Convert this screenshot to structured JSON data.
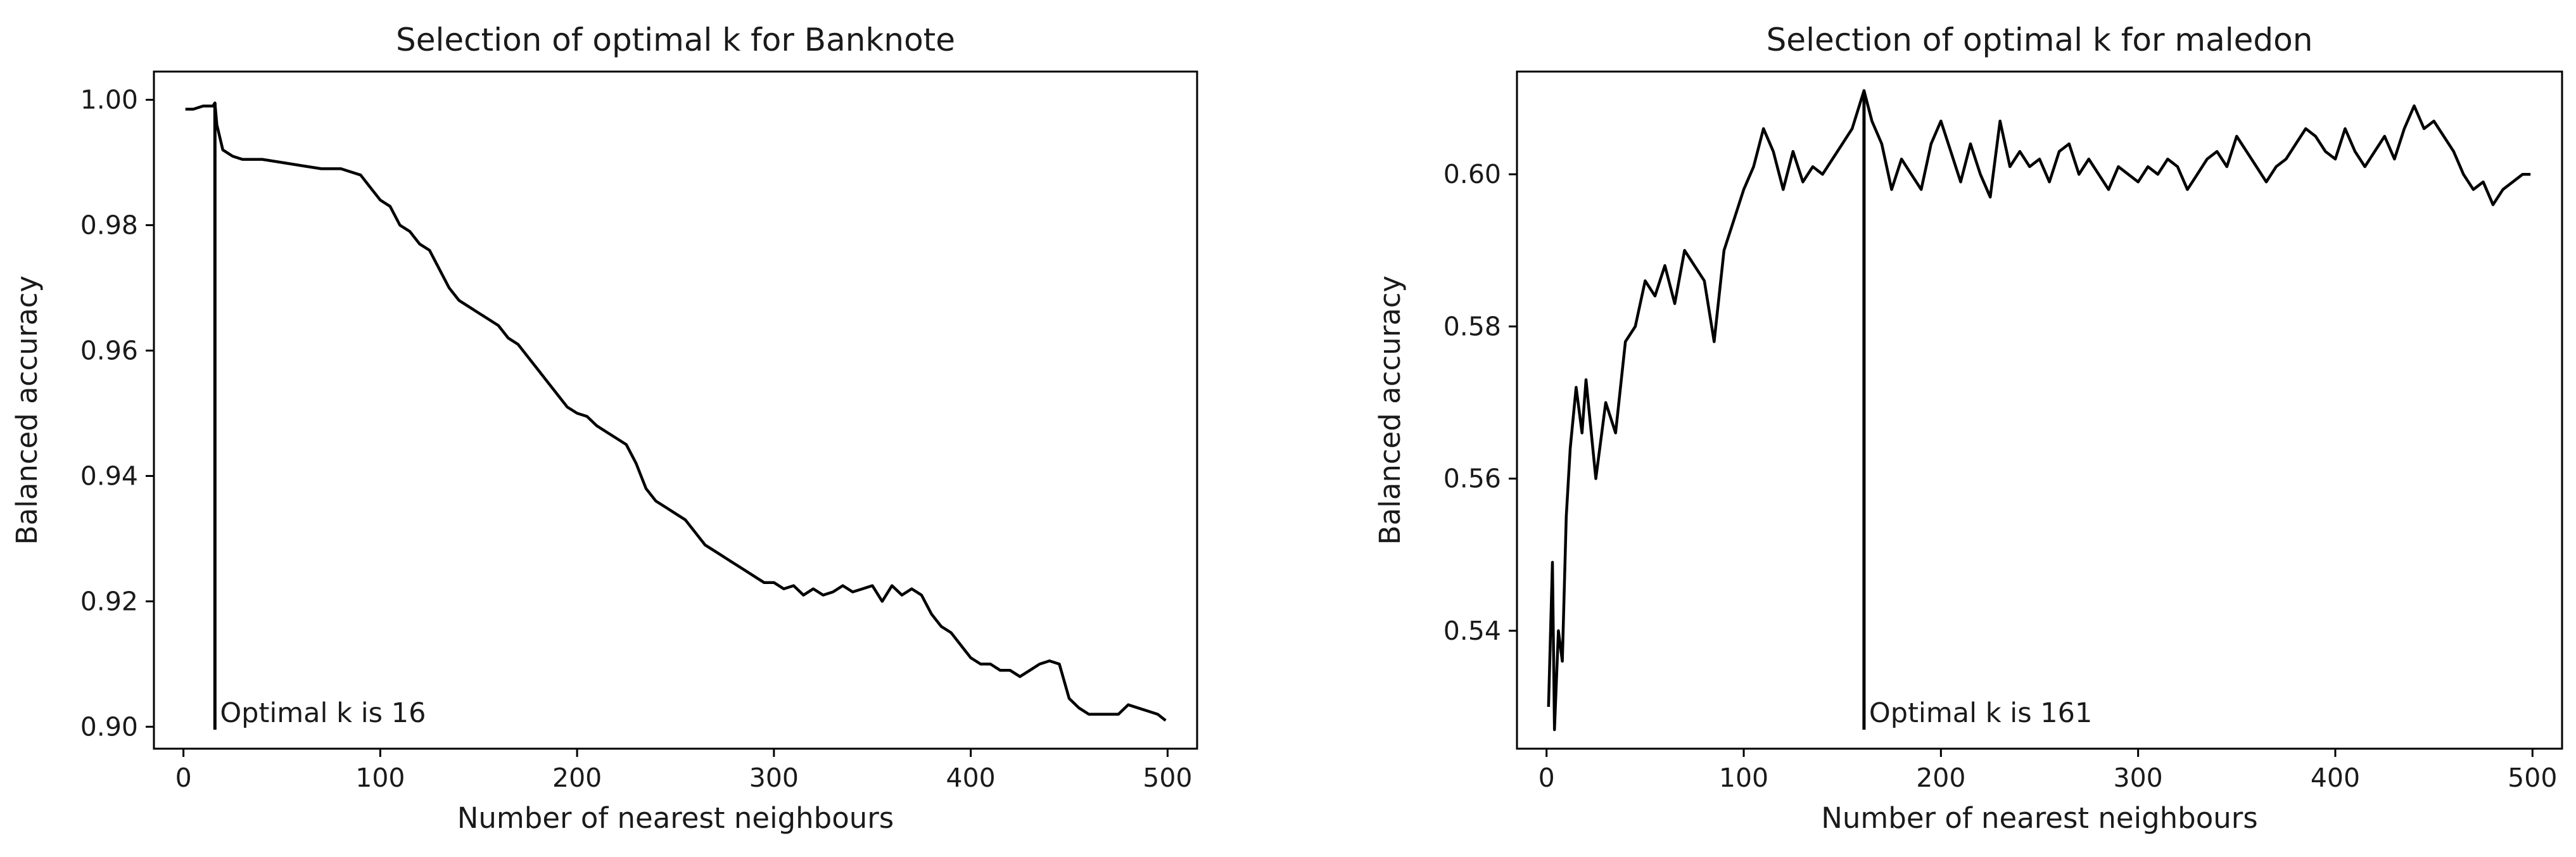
{
  "chart_data": [
    {
      "type": "line",
      "title": "Selection of optimal k for Banknote",
      "xlabel": "Number of nearest neighbours",
      "ylabel": "Balanced accuracy",
      "xlim": [
        -15,
        515
      ],
      "ylim": [
        0.8965,
        1.0045
      ],
      "xticks": [
        0,
        100,
        200,
        300,
        400,
        500
      ],
      "yticks": [
        0.9,
        0.92,
        0.94,
        0.96,
        0.98,
        1.0
      ],
      "ytick_labels": [
        "0.90",
        "0.92",
        "0.94",
        "0.96",
        "0.98",
        "1.00"
      ],
      "grid": false,
      "optimal_k": 16,
      "optimal_value": 0.9995,
      "annotation": "Optimal k is 16",
      "series": [
        {
          "x": [
            1,
            5,
            10,
            13,
            15,
            16,
            17,
            20,
            25,
            30,
            40,
            50,
            60,
            70,
            80,
            85,
            90,
            95,
            100,
            105,
            110,
            115,
            120,
            125,
            130,
            135,
            140,
            145,
            150,
            155,
            160,
            165,
            170,
            175,
            180,
            185,
            190,
            195,
            200,
            205,
            210,
            215,
            220,
            225,
            230,
            235,
            240,
            245,
            250,
            255,
            260,
            265,
            270,
            275,
            280,
            285,
            290,
            295,
            300,
            305,
            310,
            315,
            320,
            325,
            330,
            335,
            340,
            345,
            350,
            355,
            360,
            365,
            370,
            375,
            380,
            385,
            390,
            395,
            400,
            405,
            410,
            415,
            420,
            425,
            430,
            435,
            440,
            445,
            450,
            455,
            460,
            465,
            470,
            475,
            480,
            485,
            490,
            495,
            499
          ],
          "y": [
            0.9985,
            0.9985,
            0.999,
            0.999,
            0.999,
            0.9995,
            0.996,
            0.992,
            0.991,
            0.9905,
            0.9905,
            0.99,
            0.9895,
            0.989,
            0.989,
            0.9885,
            0.988,
            0.986,
            0.984,
            0.983,
            0.98,
            0.979,
            0.977,
            0.976,
            0.973,
            0.97,
            0.968,
            0.967,
            0.966,
            0.965,
            0.964,
            0.962,
            0.961,
            0.959,
            0.957,
            0.955,
            0.953,
            0.951,
            0.95,
            0.9495,
            0.948,
            0.947,
            0.946,
            0.945,
            0.942,
            0.938,
            0.936,
            0.935,
            0.934,
            0.933,
            0.931,
            0.929,
            0.928,
            0.927,
            0.926,
            0.925,
            0.924,
            0.923,
            0.923,
            0.922,
            0.9225,
            0.921,
            0.922,
            0.921,
            0.9215,
            0.9225,
            0.9215,
            0.922,
            0.9225,
            0.92,
            0.9225,
            0.921,
            0.922,
            0.921,
            0.918,
            0.916,
            0.915,
            0.913,
            0.911,
            0.91,
            0.91,
            0.909,
            0.909,
            0.908,
            0.909,
            0.91,
            0.9105,
            0.91,
            0.9045,
            0.903,
            0.902,
            0.902,
            0.902,
            0.902,
            0.9035,
            0.903,
            0.9025,
            0.902,
            0.901
          ]
        }
      ]
    },
    {
      "type": "line",
      "title": "Selection of optimal k for maledon",
      "xlabel": "Number of nearest neighbours",
      "ylabel": "Balanced accuracy",
      "xlim": [
        -15,
        515
      ],
      "ylim": [
        0.5245,
        0.6135
      ],
      "xticks": [
        0,
        100,
        200,
        300,
        400,
        500
      ],
      "yticks": [
        0.54,
        0.56,
        0.58,
        0.6
      ],
      "ytick_labels": [
        "0.54",
        "0.56",
        "0.58",
        "0.60"
      ],
      "grid": false,
      "optimal_k": 161,
      "optimal_value": 0.611,
      "annotation": "Optimal k is 161",
      "series": [
        {
          "x": [
            1,
            3,
            4,
            6,
            8,
            10,
            12,
            15,
            18,
            20,
            25,
            30,
            35,
            40,
            45,
            50,
            55,
            60,
            65,
            70,
            75,
            80,
            85,
            90,
            95,
            100,
            105,
            110,
            115,
            120,
            125,
            130,
            135,
            140,
            145,
            150,
            155,
            161,
            165,
            170,
            175,
            180,
            185,
            190,
            195,
            200,
            205,
            210,
            215,
            220,
            225,
            230,
            235,
            240,
            245,
            250,
            255,
            260,
            265,
            270,
            275,
            280,
            285,
            290,
            295,
            300,
            305,
            310,
            315,
            320,
            325,
            330,
            335,
            340,
            345,
            350,
            355,
            360,
            365,
            370,
            375,
            380,
            385,
            390,
            395,
            400,
            405,
            410,
            415,
            420,
            425,
            430,
            435,
            440,
            445,
            450,
            455,
            460,
            465,
            470,
            475,
            480,
            485,
            490,
            495,
            499
          ],
          "y": [
            0.53,
            0.549,
            0.527,
            0.54,
            0.536,
            0.555,
            0.564,
            0.572,
            0.566,
            0.573,
            0.56,
            0.57,
            0.566,
            0.578,
            0.58,
            0.586,
            0.584,
            0.588,
            0.583,
            0.59,
            0.588,
            0.586,
            0.578,
            0.59,
            0.594,
            0.598,
            0.601,
            0.606,
            0.603,
            0.598,
            0.603,
            0.599,
            0.601,
            0.6,
            0.602,
            0.604,
            0.606,
            0.611,
            0.607,
            0.604,
            0.598,
            0.602,
            0.6,
            0.598,
            0.604,
            0.607,
            0.603,
            0.599,
            0.604,
            0.6,
            0.597,
            0.607,
            0.601,
            0.603,
            0.601,
            0.602,
            0.599,
            0.603,
            0.604,
            0.6,
            0.602,
            0.6,
            0.598,
            0.601,
            0.6,
            0.599,
            0.601,
            0.6,
            0.602,
            0.601,
            0.598,
            0.6,
            0.602,
            0.603,
            0.601,
            0.605,
            0.603,
            0.601,
            0.599,
            0.601,
            0.602,
            0.604,
            0.606,
            0.605,
            0.603,
            0.602,
            0.606,
            0.603,
            0.601,
            0.603,
            0.605,
            0.602,
            0.606,
            0.609,
            0.606,
            0.607,
            0.605,
            0.603,
            0.6,
            0.598,
            0.599,
            0.596,
            0.598,
            0.599,
            0.6,
            0.6
          ]
        }
      ]
    }
  ]
}
